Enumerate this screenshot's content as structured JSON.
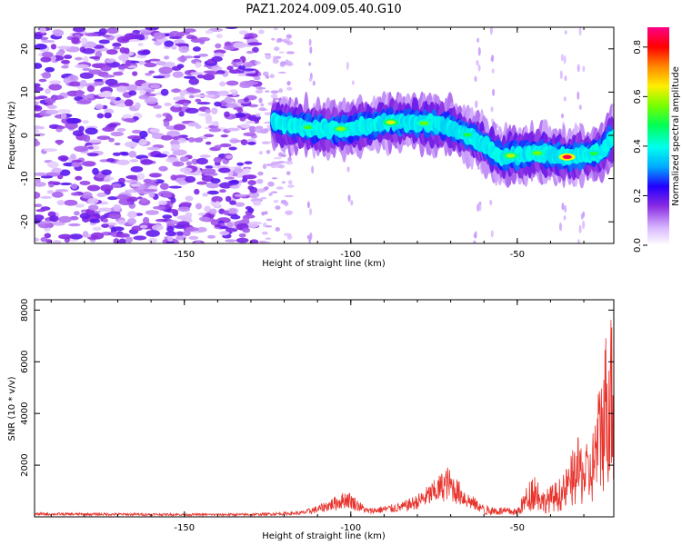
{
  "figure": {
    "title": "PAZ1.2024.009.05.40.G10"
  },
  "chart_data": [
    {
      "type": "heatmap",
      "xlabel": "Height of straight line (km)",
      "ylabel": "Frequency (Hz)",
      "xlim": [
        -195,
        -21
      ],
      "ylim": [
        -25,
        25
      ],
      "xticks": [
        -150,
        -100,
        -50
      ],
      "yticks": [
        -20,
        -10,
        0,
        10,
        20
      ],
      "colorbar": {
        "label": "Normalized spectral amplitude",
        "range": [
          0.0,
          0.88
        ],
        "ticks": [
          0.0,
          0.2,
          0.4,
          0.6,
          0.8
        ]
      },
      "ridge": [
        {
          "x": -123,
          "f": 3
        },
        {
          "x": -110,
          "f": 1.5
        },
        {
          "x": -100,
          "f": 1.5
        },
        {
          "x": -90,
          "f": 3
        },
        {
          "x": -80,
          "f": 3
        },
        {
          "x": -70,
          "f": 2
        },
        {
          "x": -62,
          "f": -1
        },
        {
          "x": -55,
          "f": -5
        },
        {
          "x": -45,
          "f": -4
        },
        {
          "x": -35,
          "f": -5
        },
        {
          "x": -25,
          "f": -4
        },
        {
          "x": -21,
          "f": 0
        }
      ],
      "peak_amplitude": 0.85
    },
    {
      "type": "line",
      "xlabel": "Height of straight line (km)",
      "ylabel": "SNR (10 * v/v)",
      "xlim": [
        -195,
        -21
      ],
      "ylim": [
        0,
        8400
      ],
      "xticks": [
        -150,
        -100,
        -50
      ],
      "yticks": [
        2000,
        4000,
        6000,
        8000
      ],
      "line_color": "#e8332c",
      "envelope": [
        {
          "x": -195,
          "y": 150
        },
        {
          "x": -150,
          "y": 120
        },
        {
          "x": -130,
          "y": 120
        },
        {
          "x": -115,
          "y": 200
        },
        {
          "x": -110,
          "y": 400
        },
        {
          "x": -101,
          "y": 950
        },
        {
          "x": -95,
          "y": 300
        },
        {
          "x": -85,
          "y": 500
        },
        {
          "x": -80,
          "y": 800
        },
        {
          "x": -75,
          "y": 1300
        },
        {
          "x": -71,
          "y": 1800
        },
        {
          "x": -65,
          "y": 900
        },
        {
          "x": -60,
          "y": 400
        },
        {
          "x": -50,
          "y": 300
        },
        {
          "x": -45,
          "y": 1700
        },
        {
          "x": -42,
          "y": 900
        },
        {
          "x": -36,
          "y": 1500
        },
        {
          "x": -32,
          "y": 2800
        },
        {
          "x": -28,
          "y": 2500
        },
        {
          "x": -24,
          "y": 6000
        },
        {
          "x": -22,
          "y": 8400
        },
        {
          "x": -21,
          "y": 5000
        }
      ]
    }
  ]
}
